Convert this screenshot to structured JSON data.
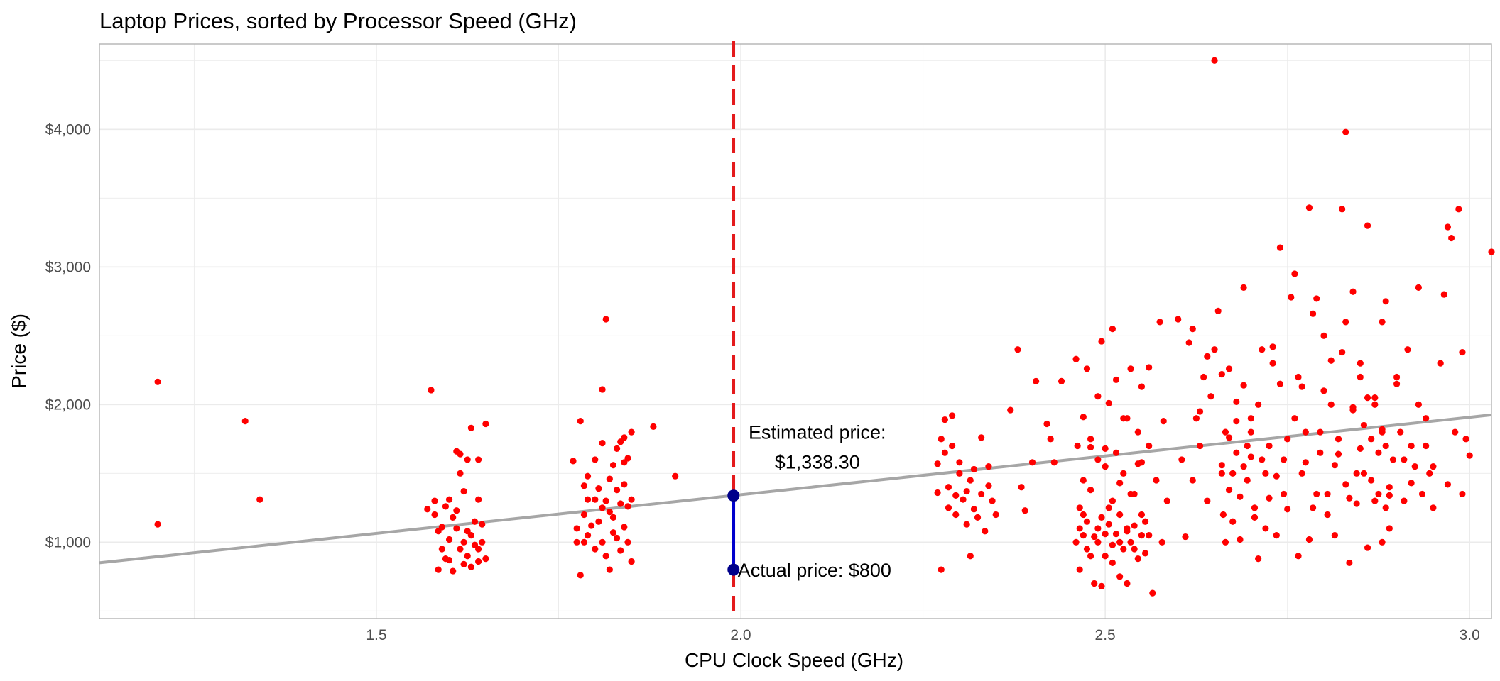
{
  "chart_data": {
    "type": "scatter",
    "title": "Laptop Prices, sorted by Processor Speed (GHz)",
    "xlabel": "CPU Clock Speed (GHz)",
    "ylabel": "Price ($)",
    "xlim": [
      1.12,
      3.03
    ],
    "ylim": [
      445,
      4620
    ],
    "x_ticks": [
      1.5,
      2.0,
      2.5,
      3.0
    ],
    "x_tick_labels": [
      "1.5",
      "2.0",
      "2.5",
      "3.0"
    ],
    "y_ticks": [
      1000,
      2000,
      3000,
      4000
    ],
    "y_tick_labels": [
      "$1,000",
      "$2,000",
      "$3,000",
      "$4,000"
    ],
    "grid": true,
    "legend": "none",
    "colors": {
      "points": "#ff0000",
      "trend_line": "#a6a6a6",
      "vline": "#e41a1c",
      "residual": "#0000cd",
      "marker": "#00008b",
      "grid": "#ebebeb"
    },
    "trend_line": {
      "x": [
        1.12,
        3.03
      ],
      "y": [
        850,
        1925
      ]
    },
    "reference_vline": {
      "x": 1.99
    },
    "highlight": {
      "x": 1.99,
      "estimated": 1338.3,
      "actual": 800,
      "estimated_label_line1": "Estimated price:",
      "estimated_label_line2": "$1,338.30",
      "actual_label": "Actual price: $800"
    },
    "points": [
      [
        1.2,
        2165
      ],
      [
        1.2,
        1130
      ],
      [
        1.32,
        1880
      ],
      [
        1.34,
        1310
      ],
      [
        1.57,
        1240
      ],
      [
        1.575,
        2105
      ],
      [
        1.58,
        1300
      ],
      [
        1.58,
        1200
      ],
      [
        1.585,
        1080
      ],
      [
        1.585,
        800
      ],
      [
        1.59,
        950
      ],
      [
        1.59,
        1110
      ],
      [
        1.595,
        1260
      ],
      [
        1.595,
        880
      ],
      [
        1.6,
        1310
      ],
      [
        1.6,
        1020
      ],
      [
        1.6,
        870
      ],
      [
        1.605,
        1180
      ],
      [
        1.605,
        790
      ],
      [
        1.61,
        1660
      ],
      [
        1.61,
        1230
      ],
      [
        1.61,
        1100
      ],
      [
        1.615,
        1500
      ],
      [
        1.615,
        1640
      ],
      [
        1.615,
        950
      ],
      [
        1.62,
        1370
      ],
      [
        1.62,
        1000
      ],
      [
        1.62,
        840
      ],
      [
        1.625,
        1080
      ],
      [
        1.625,
        900
      ],
      [
        1.625,
        1600
      ],
      [
        1.63,
        1830
      ],
      [
        1.63,
        1050
      ],
      [
        1.63,
        820
      ],
      [
        1.635,
        1150
      ],
      [
        1.635,
        980
      ],
      [
        1.64,
        1310
      ],
      [
        1.64,
        1600
      ],
      [
        1.64,
        950
      ],
      [
        1.64,
        860
      ],
      [
        1.645,
        1130
      ],
      [
        1.645,
        1000
      ],
      [
        1.65,
        1860
      ],
      [
        1.65,
        880
      ],
      [
        1.77,
        1590
      ],
      [
        1.775,
        1000
      ],
      [
        1.775,
        1100
      ],
      [
        1.78,
        760
      ],
      [
        1.78,
        1880
      ],
      [
        1.785,
        1410
      ],
      [
        1.785,
        1200
      ],
      [
        1.785,
        1000
      ],
      [
        1.79,
        1310
      ],
      [
        1.79,
        1480
      ],
      [
        1.79,
        1050
      ],
      [
        1.795,
        1120
      ],
      [
        1.8,
        1310
      ],
      [
        1.8,
        1600
      ],
      [
        1.8,
        950
      ],
      [
        1.805,
        1390
      ],
      [
        1.805,
        1150
      ],
      [
        1.81,
        1720
      ],
      [
        1.81,
        1250
      ],
      [
        1.81,
        1000
      ],
      [
        1.815,
        2620
      ],
      [
        1.815,
        1300
      ],
      [
        1.815,
        900
      ],
      [
        1.82,
        1220
      ],
      [
        1.82,
        1460
      ],
      [
        1.82,
        800
      ],
      [
        1.825,
        1560
      ],
      [
        1.825,
        1180
      ],
      [
        1.825,
        1070
      ],
      [
        1.83,
        1380
      ],
      [
        1.83,
        1030
      ],
      [
        1.835,
        1730
      ],
      [
        1.835,
        1280
      ],
      [
        1.835,
        940
      ],
      [
        1.84,
        1760
      ],
      [
        1.84,
        1420
      ],
      [
        1.84,
        1110
      ],
      [
        1.845,
        1260
      ],
      [
        1.845,
        1610
      ],
      [
        1.845,
        1000
      ],
      [
        1.85,
        1800
      ],
      [
        1.85,
        1310
      ],
      [
        1.85,
        860
      ],
      [
        1.81,
        2110
      ],
      [
        1.84,
        1580
      ],
      [
        1.83,
        1680
      ],
      [
        1.88,
        1840
      ],
      [
        1.91,
        1480
      ],
      [
        2.27,
        1360
      ],
      [
        2.27,
        1570
      ],
      [
        2.275,
        1750
      ],
      [
        2.275,
        800
      ],
      [
        2.28,
        1650
      ],
      [
        2.28,
        1890
      ],
      [
        2.285,
        1400
      ],
      [
        2.285,
        1250
      ],
      [
        2.29,
        1920
      ],
      [
        2.29,
        1700
      ],
      [
        2.295,
        1340
      ],
      [
        2.295,
        1200
      ],
      [
        2.3,
        1580
      ],
      [
        2.3,
        1500
      ],
      [
        2.305,
        1310
      ],
      [
        2.31,
        1370
      ],
      [
        2.31,
        1130
      ],
      [
        2.315,
        1450
      ],
      [
        2.315,
        900
      ],
      [
        2.32,
        1240
      ],
      [
        2.32,
        1530
      ],
      [
        2.325,
        1180
      ],
      [
        2.33,
        1350
      ],
      [
        2.33,
        1760
      ],
      [
        2.335,
        1080
      ],
      [
        2.34,
        1550
      ],
      [
        2.34,
        1410
      ],
      [
        2.345,
        1300
      ],
      [
        2.35,
        1200
      ],
      [
        2.37,
        1960
      ],
      [
        2.38,
        2400
      ],
      [
        2.385,
        1400
      ],
      [
        2.39,
        1230
      ],
      [
        2.4,
        1580
      ],
      [
        2.405,
        2170
      ],
      [
        2.42,
        1860
      ],
      [
        2.425,
        1750
      ],
      [
        2.43,
        1580
      ],
      [
        2.44,
        2170
      ],
      [
        2.46,
        2330
      ],
      [
        2.462,
        1700
      ],
      [
        2.465,
        1100
      ],
      [
        2.465,
        800
      ],
      [
        2.47,
        1910
      ],
      [
        2.47,
        1200
      ],
      [
        2.475,
        2260
      ],
      [
        2.475,
        950
      ],
      [
        2.48,
        1690
      ],
      [
        2.48,
        1380
      ],
      [
        2.485,
        700
      ],
      [
        2.485,
        1040
      ],
      [
        2.49,
        1600
      ],
      [
        2.49,
        1100
      ],
      [
        2.495,
        2460
      ],
      [
        2.495,
        680
      ],
      [
        2.5,
        1550
      ],
      [
        2.5,
        900
      ],
      [
        2.505,
        2010
      ],
      [
        2.505,
        1250
      ],
      [
        2.51,
        1300
      ],
      [
        2.51,
        850
      ],
      [
        2.515,
        2180
      ],
      [
        2.515,
        1650
      ],
      [
        2.52,
        1000
      ],
      [
        2.52,
        750
      ],
      [
        2.525,
        1900
      ],
      [
        2.525,
        1500
      ],
      [
        2.53,
        1100
      ],
      [
        2.53,
        700
      ],
      [
        2.535,
        2260
      ],
      [
        2.535,
        1350
      ],
      [
        2.54,
        950
      ],
      [
        2.545,
        1800
      ],
      [
        2.545,
        1570
      ],
      [
        2.55,
        2130
      ],
      [
        2.55,
        1200
      ],
      [
        2.555,
        920
      ],
      [
        2.56,
        1700
      ],
      [
        2.56,
        1050
      ],
      [
        2.565,
        630
      ],
      [
        2.57,
        1450
      ],
      [
        2.575,
        2600
      ],
      [
        2.578,
        1000
      ],
      [
        2.58,
        1880
      ],
      [
        2.585,
        1300
      ],
      [
        2.465,
        1250
      ],
      [
        2.47,
        1050
      ],
      [
        2.475,
        1150
      ],
      [
        2.48,
        900
      ],
      [
        2.49,
        1000
      ],
      [
        2.495,
        1180
      ],
      [
        2.5,
        1060
      ],
      [
        2.505,
        1130
      ],
      [
        2.51,
        980
      ],
      [
        2.515,
        1060
      ],
      [
        2.52,
        1200
      ],
      [
        2.525,
        950
      ],
      [
        2.53,
        1080
      ],
      [
        2.535,
        1000
      ],
      [
        2.54,
        1120
      ],
      [
        2.545,
        880
      ],
      [
        2.55,
        1050
      ],
      [
        2.555,
        1150
      ],
      [
        2.46,
        1000
      ],
      [
        2.47,
        1450
      ],
      [
        2.48,
        1750
      ],
      [
        2.49,
        2060
      ],
      [
        2.5,
        1680
      ],
      [
        2.51,
        2550
      ],
      [
        2.52,
        1430
      ],
      [
        2.53,
        1900
      ],
      [
        2.54,
        1350
      ],
      [
        2.55,
        1580
      ],
      [
        2.56,
        2270
      ],
      [
        2.6,
        2620
      ],
      [
        2.605,
        1600
      ],
      [
        2.61,
        1040
      ],
      [
        2.615,
        2450
      ],
      [
        2.62,
        1450
      ],
      [
        2.625,
        1900
      ],
      [
        2.63,
        1700
      ],
      [
        2.635,
        2200
      ],
      [
        2.64,
        1300
      ],
      [
        2.645,
        2060
      ],
      [
        2.65,
        4500
      ],
      [
        2.655,
        2680
      ],
      [
        2.66,
        1560
      ],
      [
        2.665,
        1800
      ],
      [
        2.67,
        2260
      ],
      [
        2.675,
        1500
      ],
      [
        2.68,
        2020
      ],
      [
        2.685,
        1330
      ],
      [
        2.69,
        2140
      ],
      [
        2.695,
        1700
      ],
      [
        2.7,
        1900
      ],
      [
        2.705,
        1250
      ],
      [
        2.71,
        2000
      ],
      [
        2.715,
        1600
      ],
      [
        2.72,
        1100
      ],
      [
        2.725,
        1700
      ],
      [
        2.73,
        2420
      ],
      [
        2.735,
        1480
      ],
      [
        2.74,
        2150
      ],
      [
        2.745,
        1350
      ],
      [
        2.75,
        1750
      ],
      [
        2.62,
        2550
      ],
      [
        2.63,
        1950
      ],
      [
        2.64,
        2350
      ],
      [
        2.65,
        2400
      ],
      [
        2.66,
        2220
      ],
      [
        2.67,
        1760
      ],
      [
        2.68,
        1650
      ],
      [
        2.69,
        1550
      ],
      [
        2.7,
        1800
      ],
      [
        2.66,
        1500
      ],
      [
        2.662,
        1200
      ],
      [
        2.665,
        1000
      ],
      [
        2.67,
        1380
      ],
      [
        2.675,
        1150
      ],
      [
        2.68,
        1880
      ],
      [
        2.685,
        1020
      ],
      [
        2.69,
        2850
      ],
      [
        2.695,
        1450
      ],
      [
        2.7,
        1620
      ],
      [
        2.705,
        1180
      ],
      [
        2.71,
        880
      ],
      [
        2.715,
        2400
      ],
      [
        2.72,
        1500
      ],
      [
        2.725,
        1320
      ],
      [
        2.73,
        2300
      ],
      [
        2.735,
        1050
      ],
      [
        2.74,
        3140
      ],
      [
        2.745,
        1600
      ],
      [
        2.75,
        1240
      ],
      [
        2.755,
        2780
      ],
      [
        2.76,
        1900
      ],
      [
        2.765,
        900
      ],
      [
        2.77,
        2130
      ],
      [
        2.775,
        1580
      ],
      [
        2.78,
        1020
      ],
      [
        2.785,
        2660
      ],
      [
        2.79,
        1350
      ],
      [
        2.795,
        1800
      ],
      [
        2.8,
        2500
      ],
      [
        2.805,
        1200
      ],
      [
        2.81,
        2000
      ],
      [
        2.815,
        1050
      ],
      [
        2.82,
        1640
      ],
      [
        2.825,
        2380
      ],
      [
        2.83,
        1420
      ],
      [
        2.835,
        850
      ],
      [
        2.84,
        1960
      ],
      [
        2.845,
        1280
      ],
      [
        2.85,
        2200
      ],
      [
        2.855,
        1500
      ],
      [
        2.86,
        960
      ],
      [
        2.865,
        1750
      ],
      [
        2.87,
        2000
      ],
      [
        2.875,
        1350
      ],
      [
        2.88,
        2600
      ],
      [
        2.885,
        1700
      ],
      [
        2.89,
        1100
      ],
      [
        2.76,
        2950
      ],
      [
        2.765,
        2200
      ],
      [
        2.77,
        1500
      ],
      [
        2.775,
        1800
      ],
      [
        2.78,
        3430
      ],
      [
        2.785,
        1250
      ],
      [
        2.79,
        2770
      ],
      [
        2.795,
        1650
      ],
      [
        2.8,
        2100
      ],
      [
        2.805,
        1350
      ],
      [
        2.81,
        2320
      ],
      [
        2.815,
        1560
      ],
      [
        2.82,
        1750
      ],
      [
        2.825,
        3420
      ],
      [
        2.83,
        2600
      ],
      [
        2.835,
        1320
      ],
      [
        2.84,
        1980
      ],
      [
        2.845,
        1500
      ],
      [
        2.85,
        2300
      ],
      [
        2.855,
        1850
      ],
      [
        2.86,
        3300
      ],
      [
        2.865,
        1450
      ],
      [
        2.87,
        2050
      ],
      [
        2.875,
        1650
      ],
      [
        2.88,
        1000
      ],
      [
        2.885,
        2750
      ],
      [
        2.89,
        1400
      ],
      [
        2.895,
        1600
      ],
      [
        2.9,
        2150
      ],
      [
        2.905,
        1800
      ],
      [
        2.91,
        1300
      ],
      [
        2.915,
        2400
      ],
      [
        2.92,
        1700
      ],
      [
        2.925,
        1550
      ],
      [
        2.93,
        2850
      ],
      [
        2.935,
        1350
      ],
      [
        2.94,
        1900
      ],
      [
        2.945,
        1500
      ],
      [
        2.95,
        1250
      ],
      [
        2.83,
        3980
      ],
      [
        2.84,
        2820
      ],
      [
        2.85,
        1680
      ],
      [
        2.86,
        2050
      ],
      [
        2.87,
        1300
      ],
      [
        2.88,
        1820
      ],
      [
        2.88,
        1800
      ],
      [
        2.885,
        1250
      ],
      [
        2.89,
        1340
      ],
      [
        2.9,
        2200
      ],
      [
        2.91,
        1600
      ],
      [
        2.92,
        1430
      ],
      [
        2.93,
        2000
      ],
      [
        2.94,
        1700
      ],
      [
        2.95,
        1550
      ],
      [
        2.96,
        2300
      ],
      [
        2.97,
        1420
      ],
      [
        2.98,
        1800
      ],
      [
        2.99,
        1350
      ],
      [
        2.965,
        2800
      ],
      [
        2.97,
        3290
      ],
      [
        2.975,
        3210
      ],
      [
        2.985,
        3420
      ],
      [
        2.99,
        2380
      ],
      [
        2.995,
        1750
      ],
      [
        3.0,
        1630
      ],
      [
        3.03,
        3110
      ]
    ]
  }
}
